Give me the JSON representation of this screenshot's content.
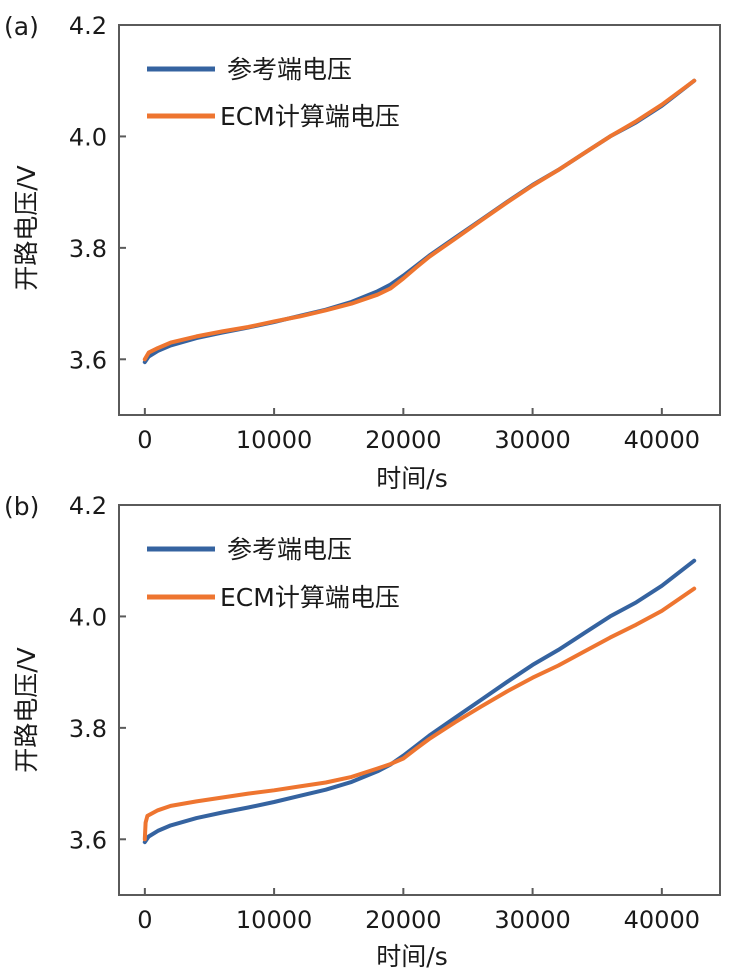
{
  "figure": {
    "colors": {
      "ref": "#3563a0",
      "ecm": "#ee7530",
      "frame": "#5a5a5a"
    }
  },
  "chart_data": [
    {
      "type": "line",
      "panel_label": "(a)",
      "xlabel": "时间/s",
      "ylabel": "开路电压/V",
      "xlim": [
        -2000,
        44500
      ],
      "ylim": [
        3.5,
        4.2
      ],
      "xticks": [
        0,
        10000,
        20000,
        30000,
        40000
      ],
      "xtick_labels": [
        "0",
        "10000",
        "20000",
        "30000",
        "40000"
      ],
      "yticks": [
        3.6,
        3.8,
        4.0,
        4.2
      ],
      "ytick_labels": [
        "3.6",
        "3.8",
        "4.0",
        "4.2"
      ],
      "legend_position": "top-left",
      "series": [
        {
          "name": "参考端电压",
          "color": "#3563a0",
          "x": [
            0,
            300,
            1000,
            2000,
            4000,
            6000,
            8000,
            10000,
            12000,
            14000,
            16000,
            18000,
            19000,
            20000,
            21000,
            22000,
            24000,
            26000,
            28000,
            30000,
            32000,
            34000,
            36000,
            38000,
            40000,
            42500
          ],
          "y": [
            3.595,
            3.605,
            3.615,
            3.625,
            3.638,
            3.648,
            3.657,
            3.667,
            3.678,
            3.689,
            3.703,
            3.722,
            3.734,
            3.75,
            3.768,
            3.786,
            3.818,
            3.85,
            3.882,
            3.913,
            3.94,
            3.97,
            4.0,
            4.025,
            4.055,
            4.1
          ]
        },
        {
          "name": "ECM计算端电压",
          "color": "#ee7530",
          "x": [
            0,
            300,
            1000,
            2000,
            4000,
            6000,
            8000,
            10000,
            12000,
            14000,
            16000,
            18000,
            19000,
            20000,
            21000,
            22000,
            24000,
            26000,
            28000,
            30000,
            32000,
            34000,
            36000,
            38000,
            40000,
            42500
          ],
          "y": [
            3.6,
            3.612,
            3.62,
            3.63,
            3.641,
            3.65,
            3.658,
            3.668,
            3.677,
            3.688,
            3.7,
            3.716,
            3.727,
            3.745,
            3.765,
            3.784,
            3.816,
            3.849,
            3.881,
            3.912,
            3.94,
            3.97,
            4.0,
            4.027,
            4.057,
            4.1
          ]
        }
      ]
    },
    {
      "type": "line",
      "panel_label": "(b)",
      "xlabel": "时间/s",
      "ylabel": "开路电压/V",
      "xlim": [
        -2000,
        44500
      ],
      "ylim": [
        3.5,
        4.2
      ],
      "xticks": [
        0,
        10000,
        20000,
        30000,
        40000
      ],
      "xtick_labels": [
        "0",
        "10000",
        "20000",
        "30000",
        "40000"
      ],
      "yticks": [
        3.6,
        3.8,
        4.0,
        4.2
      ],
      "ytick_labels": [
        "3.6",
        "3.8",
        "4.0",
        "4.2"
      ],
      "legend_position": "top-left",
      "series": [
        {
          "name": "参考端电压",
          "color": "#3563a0",
          "x": [
            0,
            300,
            1000,
            2000,
            4000,
            6000,
            8000,
            10000,
            12000,
            14000,
            16000,
            18000,
            19000,
            20000,
            21000,
            22000,
            24000,
            26000,
            28000,
            30000,
            32000,
            34000,
            36000,
            38000,
            40000,
            42500
          ],
          "y": [
            3.595,
            3.605,
            3.615,
            3.625,
            3.638,
            3.648,
            3.657,
            3.667,
            3.678,
            3.689,
            3.703,
            3.722,
            3.734,
            3.75,
            3.768,
            3.786,
            3.818,
            3.85,
            3.882,
            3.913,
            3.94,
            3.97,
            4.0,
            4.025,
            4.055,
            4.1
          ]
        },
        {
          "name": "ECM计算端电压",
          "color": "#ee7530",
          "x": [
            0,
            60,
            200,
            1000,
            2000,
            4000,
            6000,
            8000,
            10000,
            12000,
            14000,
            16000,
            18000,
            19000,
            20000,
            21000,
            22000,
            24000,
            26000,
            28000,
            30000,
            32000,
            34000,
            36000,
            38000,
            40000,
            42500
          ],
          "y": [
            3.6,
            3.63,
            3.642,
            3.652,
            3.66,
            3.668,
            3.675,
            3.682,
            3.688,
            3.695,
            3.702,
            3.712,
            3.727,
            3.735,
            3.745,
            3.763,
            3.78,
            3.81,
            3.838,
            3.865,
            3.89,
            3.912,
            3.937,
            3.962,
            3.985,
            4.01,
            4.05
          ]
        }
      ]
    }
  ]
}
